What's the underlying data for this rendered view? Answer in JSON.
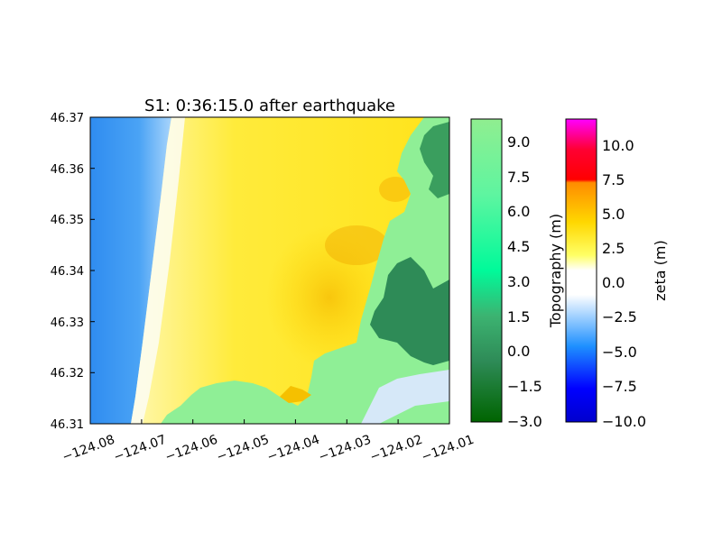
{
  "chart_data": {
    "type": "heatmap",
    "title": "S1: 0:36:15.0 after earthquake",
    "xlabel": "",
    "ylabel": "",
    "xlim": [
      -124.08,
      -124.01
    ],
    "ylim": [
      46.31,
      46.37
    ],
    "x_ticks": [
      -124.08,
      -124.07,
      -124.06,
      -124.05,
      -124.04,
      -124.03,
      -124.02,
      -124.01
    ],
    "x_tick_labels": [
      "−124.08",
      "−124.07",
      "−124.06",
      "−124.05",
      "−124.04",
      "−124.03",
      "−124.02",
      "−124.01"
    ],
    "y_ticks": [
      46.31,
      46.32,
      46.33,
      46.34,
      46.35,
      46.36,
      46.37
    ],
    "y_tick_labels": [
      "46.31",
      "46.32",
      "46.33",
      "46.34",
      "46.35",
      "46.36",
      "46.37"
    ],
    "grid": false,
    "colorbars": [
      {
        "label": "Topography (m)",
        "range": [
          -3.0,
          10.0
        ],
        "ticks": [
          -3.0,
          -1.5,
          0.0,
          1.5,
          3.0,
          4.5,
          6.0,
          7.5,
          9.0
        ],
        "tick_labels": [
          "−3.0",
          "−1.5",
          "0.0",
          "1.5",
          "3.0",
          "4.5",
          "6.0",
          "7.5",
          "9.0"
        ],
        "colors": [
          "#006400",
          "#2e8b57",
          "#3cb371",
          "#00fa9a",
          "#7fff9f",
          "#90ee90"
        ]
      },
      {
        "label": "zeta (m)",
        "range": [
          -10.0,
          12.0
        ],
        "ticks": [
          -10.0,
          -7.5,
          -5.0,
          -2.5,
          0.0,
          2.5,
          5.0,
          7.5,
          10.0
        ],
        "tick_labels": [
          "−10.0",
          "−7.5",
          "−5.0",
          "−2.5",
          "0.0",
          "2.5",
          "5.0",
          "7.5",
          "10.0"
        ],
        "colors": [
          "#0000cd",
          "#0000ff",
          "#1e90ff",
          "#87cefa",
          "#ffffff",
          "#ffff66",
          "#ffd700",
          "#ff8c00",
          "#ff0000",
          "#ff00ff"
        ]
      }
    ]
  }
}
